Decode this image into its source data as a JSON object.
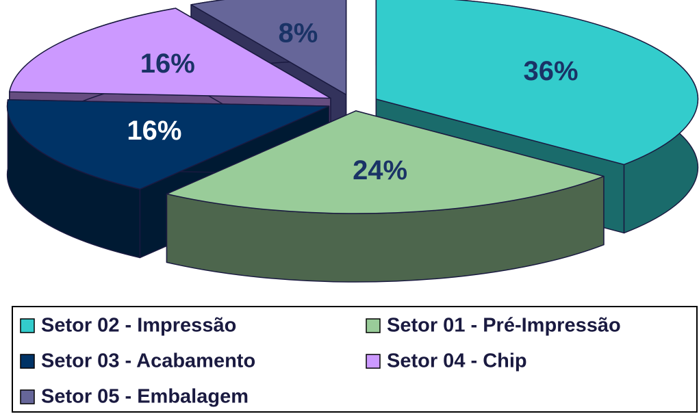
{
  "chart_data": {
    "type": "pie",
    "categories": [
      "Setor 02 - Impressão",
      "Setor 01 - Pré-Impressão",
      "Setor 03 - Acabamento",
      "Setor 04 - Chip",
      "Setor 05 - Embalagem"
    ],
    "values": [
      36,
      24,
      16,
      16,
      8
    ],
    "value_labels": [
      "36%",
      "24%",
      "16%",
      "16%",
      "8%"
    ],
    "colors": [
      "#33cccc",
      "#99cc99",
      "#003366",
      "#cc99ff",
      "#666699"
    ],
    "side_colors": [
      "#1a6b6b",
      "#4d664d",
      "#001a33",
      "#664d80",
      "#33335c"
    ],
    "label_colors": [
      "#1a3366",
      "#1a3366",
      "#ffffff",
      "#1a3366",
      "#1a3366"
    ],
    "legend": "bottom"
  }
}
